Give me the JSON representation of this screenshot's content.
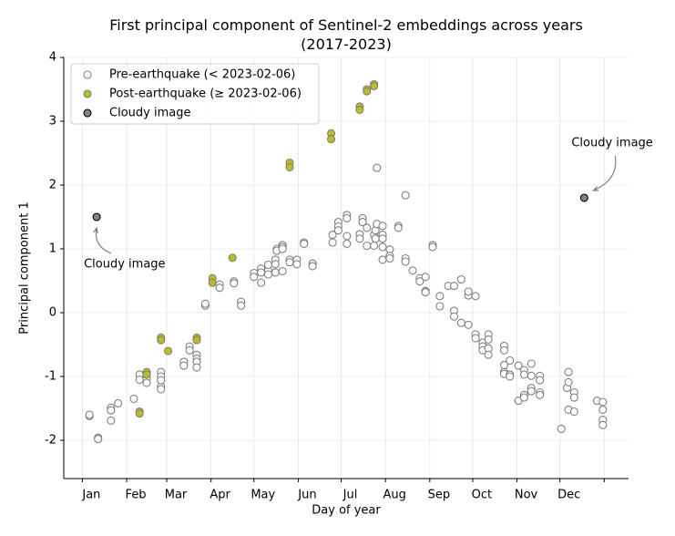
{
  "chart_data": {
    "type": "scatter",
    "title": "First principal component of Sentinel-2 embeddings across years\n(2017-2023)",
    "x_label": "Day of year",
    "y_label": "Principal component 1",
    "xlim": [
      -12,
      383
    ],
    "ylim": [
      -2.6,
      4.0
    ],
    "xticks": [
      {
        "value": 1,
        "label": "Jan"
      },
      {
        "value": 32,
        "label": "Feb"
      },
      {
        "value": 60,
        "label": "Mar"
      },
      {
        "value": 91,
        "label": "Apr"
      },
      {
        "value": 121,
        "label": "May"
      },
      {
        "value": 152,
        "label": "Jun"
      },
      {
        "value": 182,
        "label": "Jul"
      },
      {
        "value": 213,
        "label": "Aug"
      },
      {
        "value": 244,
        "label": "Sep"
      },
      {
        "value": 274,
        "label": "Oct"
      },
      {
        "value": 305,
        "label": "Nov"
      },
      {
        "value": 335,
        "label": "Dec"
      },
      {
        "value": 366,
        "label": null
      }
    ],
    "yticks": [
      -2,
      -1,
      0,
      1,
      2,
      3,
      4
    ],
    "grid": true,
    "legend": "upper left",
    "series": [
      {
        "name": "Pre-earthquake (< 2023-02-06)",
        "color": "#ffffff",
        "edge": "#808080",
        "x": [
          6,
          6,
          12,
          12,
          21,
          21,
          21,
          26,
          37,
          41,
          41,
          46,
          46,
          56,
          56,
          56,
          56,
          56,
          72,
          72,
          76,
          76,
          81,
          81,
          81,
          81,
          87,
          87,
          97,
          97,
          107,
          107,
          112,
          112,
          121,
          121,
          126,
          126,
          126,
          131,
          131,
          131,
          136,
          136,
          136,
          137,
          137,
          141,
          141,
          141,
          141,
          146,
          146,
          151,
          151,
          156,
          156,
          162,
          162,
          176,
          176,
          180,
          180,
          180,
          186,
          186,
          186,
          186,
          195,
          195,
          197,
          197,
          200,
          200,
          205,
          205,
          206,
          206,
          207,
          207,
          211,
          211,
          211,
          211,
          211,
          216,
          216,
          216,
          222,
          222,
          227,
          227,
          227,
          232,
          237,
          237,
          241,
          241,
          241,
          246,
          246,
          251,
          251,
          257,
          261,
          261,
          261,
          266,
          266,
          271,
          271,
          271,
          276,
          276,
          276,
          281,
          281,
          281,
          285,
          285,
          285,
          285,
          296,
          296,
          296,
          296,
          296,
          300,
          300,
          300,
          306,
          306,
          310,
          310,
          310,
          310,
          315,
          315,
          315,
          315,
          321,
          321,
          321,
          321,
          336,
          340,
          341,
          341,
          341,
          345,
          345,
          345,
          361,
          365,
          365,
          365,
          365
        ],
        "values": [
          -1.62,
          -1.6,
          -1.96,
          -1.98,
          -1.49,
          -1.53,
          -1.69,
          -1.42,
          -1.35,
          -0.97,
          -1.05,
          -1.03,
          -1.1,
          -0.93,
          -1.0,
          -1.16,
          -1.2,
          -1.06,
          -0.77,
          -0.83,
          -0.53,
          -0.59,
          -0.66,
          -0.72,
          -0.77,
          -0.86,
          0.11,
          0.14,
          0.44,
          0.39,
          0.49,
          0.46,
          0.17,
          0.11,
          0.62,
          0.56,
          0.69,
          0.47,
          0.63,
          0.66,
          0.75,
          0.6,
          0.83,
          0.76,
          0.63,
          1.0,
          0.97,
          1.06,
          1.03,
          1.0,
          0.65,
          0.83,
          0.79,
          0.83,
          0.76,
          1.1,
          1.08,
          0.77,
          0.73,
          1.22,
          1.1,
          1.42,
          1.35,
          1.29,
          1.53,
          1.48,
          1.2,
          1.08,
          1.23,
          1.16,
          1.48,
          1.42,
          1.33,
          1.05,
          1.22,
          1.05,
          1.29,
          1.16,
          1.39,
          2.27,
          1.36,
          1.22,
          1.16,
          1.03,
          0.83,
          0.99,
          0.89,
          0.85,
          1.36,
          1.33,
          1.84,
          0.85,
          0.8,
          0.66,
          0.54,
          0.49,
          0.56,
          0.34,
          0.32,
          1.06,
          1.03,
          0.26,
          0.1,
          0.42,
          0.03,
          -0.06,
          0.42,
          -0.16,
          0.52,
          -0.19,
          0.27,
          0.33,
          0.26,
          -0.34,
          -0.4,
          -0.47,
          -0.53,
          -0.59,
          -0.34,
          -0.42,
          -0.56,
          -0.66,
          -0.52,
          -0.59,
          -0.93,
          -0.96,
          -0.82,
          -0.75,
          -0.97,
          -1.0,
          -0.83,
          -1.38,
          -0.9,
          -0.97,
          -1.29,
          -1.33,
          -0.99,
          -1.18,
          -1.23,
          -0.8,
          -0.99,
          -1.06,
          -1.25,
          -1.29,
          -1.82,
          -1.18,
          -0.93,
          -1.09,
          -1.52,
          -1.25,
          -1.33,
          -1.55,
          -1.38,
          -1.4,
          -1.52,
          -1.68,
          -1.76
        ]
      },
      {
        "name": "Post-earthquake (≥ 2023-02-06)",
        "color": "#bcbd22",
        "edge": "#808080",
        "x": [
          41,
          41,
          46,
          46,
          56,
          56,
          61,
          81,
          81,
          92,
          92,
          106,
          146,
          146,
          175,
          175,
          195,
          195,
          200,
          200,
          205,
          205
        ],
        "values": [
          -1.55,
          -1.58,
          -0.93,
          -0.97,
          -0.39,
          -0.43,
          -0.6,
          -0.39,
          -0.43,
          0.54,
          0.47,
          0.86,
          2.35,
          2.28,
          2.81,
          2.72,
          3.23,
          3.18,
          3.5,
          3.47,
          3.58,
          3.55
        ]
      },
      {
        "name": "Cloudy image",
        "color": "#808080",
        "edge": "#000000",
        "x": [
          11,
          352
        ],
        "values": [
          1.5,
          1.8
        ]
      }
    ],
    "annotations": [
      "Cloudy image",
      "Cloudy image"
    ]
  }
}
